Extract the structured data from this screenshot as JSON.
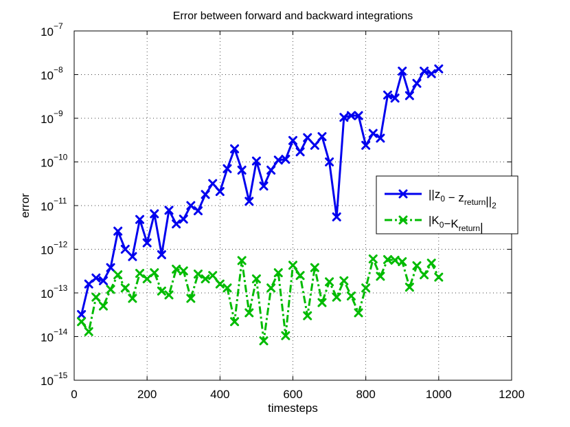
{
  "chart_data": {
    "type": "line",
    "title": "Error between forward and backward integrations",
    "xlabel": "timesteps",
    "ylabel": "error",
    "xlim": [
      0,
      1200
    ],
    "ylim": [
      1e-15,
      1e-07
    ],
    "yscale": "log",
    "grid": true,
    "legend_position": "right",
    "x_ticks": [
      0,
      200,
      400,
      600,
      800,
      1000,
      1200
    ],
    "y_tick_exponents": [
      -15,
      -14,
      -13,
      -12,
      -11,
      -10,
      -9,
      -8,
      -7
    ],
    "y_tick_base": "10",
    "x": [
      20,
      40,
      60,
      80,
      100,
      120,
      140,
      160,
      180,
      200,
      220,
      240,
      260,
      280,
      300,
      320,
      340,
      360,
      380,
      400,
      420,
      440,
      460,
      480,
      500,
      520,
      540,
      560,
      580,
      600,
      620,
      640,
      660,
      680,
      700,
      720,
      740,
      760,
      780,
      800,
      820,
      840,
      860,
      880,
      900,
      920,
      940,
      960,
      980,
      1000
    ],
    "series": [
      {
        "legend": {
          "prefix": "||z",
          "sub1": "0",
          "mid": " − z",
          "sub2": "return",
          "suffix": "||",
          "sub3": "2"
        },
        "color": "#0000ee",
        "dash": "solid",
        "marker": "x",
        "values": [
          3.2e-14,
          1.6e-13,
          2.2e-13,
          1.9e-13,
          3.8e-13,
          2.6e-12,
          1e-12,
          6.8e-13,
          4.8e-12,
          1.4e-12,
          6.5e-12,
          7.5e-13,
          7.8e-12,
          3.8e-12,
          4.9e-12,
          1e-11,
          7.6e-12,
          1.8e-11,
          3.2e-11,
          2.1e-11,
          7e-11,
          2e-10,
          6.5e-11,
          1.25e-11,
          1.05e-10,
          2.8e-11,
          6.5e-11,
          1.1e-10,
          1.15e-10,
          3.1e-10,
          1.7e-10,
          3.6e-10,
          2.4e-10,
          3.8e-10,
          1e-10,
          5.5e-12,
          1.05e-09,
          1.15e-09,
          1.15e-09,
          2.4e-10,
          4.5e-10,
          3.5e-10,
          3.4e-09,
          2.9e-09,
          1.2e-08,
          3.3e-09,
          6.3e-09,
          1.2e-08,
          1.05e-08,
          1.35e-08
        ]
      },
      {
        "legend": {
          "prefix": "|K",
          "sub1": "0",
          "mid": "−K",
          "sub2": "return",
          "suffix": "|",
          "sub3": ""
        },
        "color": "#00bb00",
        "dash": "dashdot",
        "marker": "x",
        "values": [
          2.2e-14,
          1.3e-14,
          8e-14,
          5e-14,
          1.2e-13,
          2.6e-13,
          1.3e-13,
          7.5e-14,
          2.8e-13,
          2.1e-13,
          2.9e-13,
          1.1e-13,
          9e-14,
          3.5e-13,
          3.2e-13,
          7.5e-14,
          2.7e-13,
          2.1e-13,
          2.5e-13,
          1.6e-13,
          1.3e-13,
          2.2e-14,
          5.5e-13,
          3.5e-14,
          2.1e-13,
          8e-15,
          1.3e-13,
          2.9e-13,
          1.05e-14,
          4.3e-13,
          2.5e-13,
          3e-14,
          3.8e-13,
          6e-14,
          1.8e-13,
          8e-14,
          1.9e-13,
          8.5e-14,
          3.5e-14,
          1.3e-13,
          6e-13,
          2.4e-13,
          5.8e-13,
          5.6e-13,
          5.2e-13,
          1.35e-13,
          4.2e-13,
          2.6e-13,
          4.8e-13,
          2.3e-13
        ]
      }
    ]
  }
}
